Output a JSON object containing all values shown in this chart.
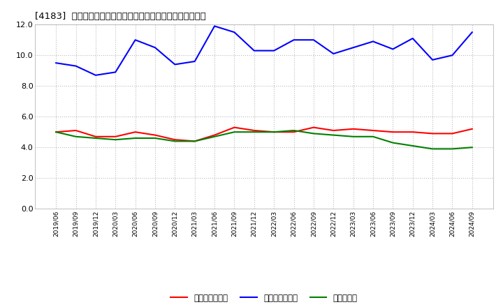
{
  "title": "[4183]  売上債権回転率、買入債務回転率、在庫回転率の推移",
  "x_labels": [
    "2019/06",
    "2019/09",
    "2019/12",
    "2020/03",
    "2020/06",
    "2020/09",
    "2020/12",
    "2021/03",
    "2021/06",
    "2021/09",
    "2021/12",
    "2022/03",
    "2022/06",
    "2022/09",
    "2022/12",
    "2023/03",
    "2023/06",
    "2023/09",
    "2023/12",
    "2024/03",
    "2024/06",
    "2024/09"
  ],
  "receivables_turnover": [
    5.0,
    5.1,
    4.7,
    4.7,
    5.0,
    4.8,
    4.5,
    4.4,
    4.8,
    5.3,
    5.1,
    5.0,
    5.0,
    5.3,
    5.1,
    5.2,
    5.1,
    5.0,
    5.0,
    4.9,
    4.9,
    5.2
  ],
  "payables_turnover": [
    9.5,
    9.3,
    8.7,
    8.9,
    11.0,
    10.5,
    9.4,
    9.6,
    11.9,
    11.5,
    10.3,
    10.3,
    11.0,
    11.0,
    10.1,
    10.5,
    10.9,
    10.4,
    11.1,
    9.7,
    10.0,
    11.5
  ],
  "inventory_turnover": [
    5.0,
    4.7,
    4.6,
    4.5,
    4.6,
    4.6,
    4.4,
    4.4,
    4.7,
    5.0,
    5.0,
    5.0,
    5.1,
    4.9,
    4.8,
    4.7,
    4.7,
    4.3,
    4.1,
    3.9,
    3.9,
    4.0
  ],
  "line_colors": {
    "receivables": "#ff0000",
    "payables": "#0000ff",
    "inventory": "#008000"
  },
  "legend_labels": {
    "receivables": "売上債権回転率",
    "payables": "買入債務回転率",
    "inventory": "在庫回転率"
  },
  "ylim": [
    0.0,
    12.0
  ],
  "yticks": [
    0.0,
    2.0,
    4.0,
    6.0,
    8.0,
    10.0,
    12.0
  ],
  "background_color": "#ffffff",
  "grid_color": "#bbbbbb",
  "line_width": 1.5
}
